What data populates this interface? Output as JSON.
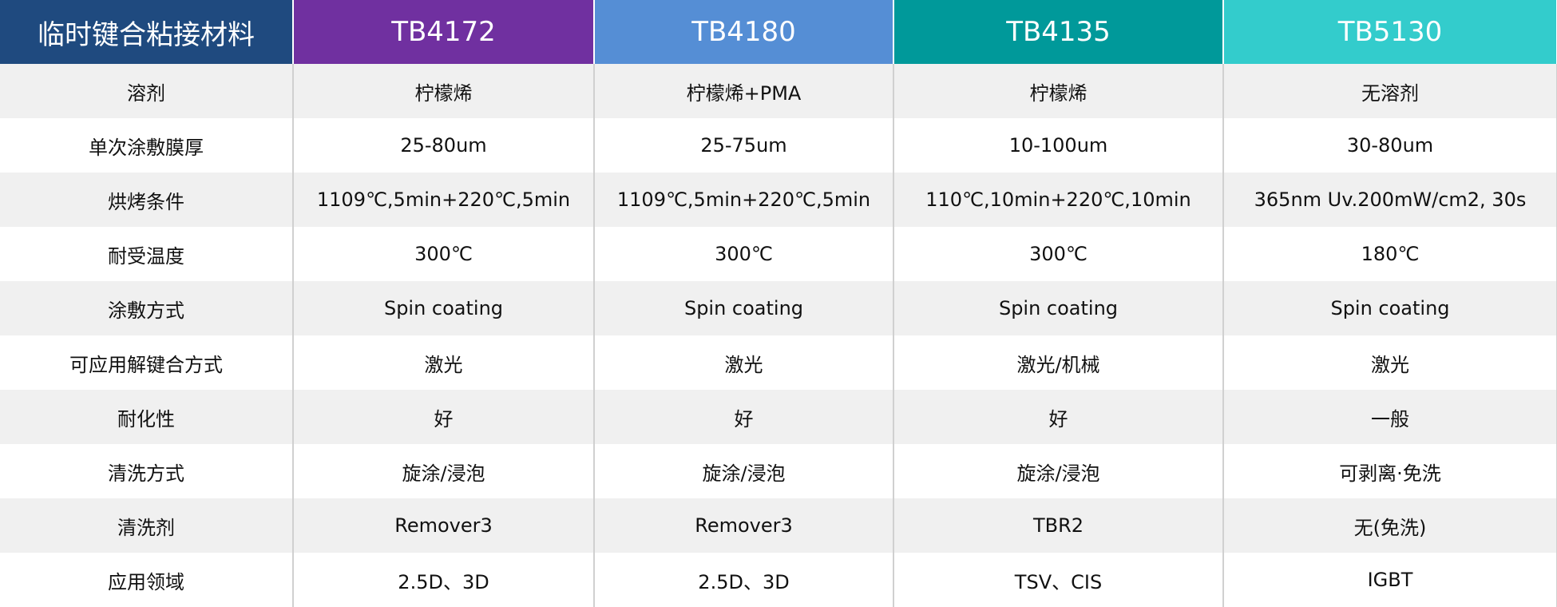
{
  "table": {
    "header": [
      "临时键合粘接材料",
      "TB4172",
      "TB4180",
      "TB4135",
      "TB5130"
    ],
    "rows": [
      [
        "溶剂",
        "柠檬烯",
        "柠檬烯+PMA",
        "柠檬烯",
        "无溶剂"
      ],
      [
        "单次涂敷膜厚",
        "25-80um",
        "25-75um",
        "10-100um",
        "30-80um"
      ],
      [
        "烘烤条件",
        "1109℃,5min+220℃,5min",
        "1109℃,5min+220℃,5min",
        "110℃,10min+220℃,10min",
        "365nm Uv.200mW/cm2, 30s"
      ],
      [
        "耐受温度",
        "300℃",
        "300℃",
        "300℃",
        "180℃"
      ],
      [
        "涂敷方式",
        "Spin coating",
        "Spin coating",
        "Spin coating",
        "Spin coating"
      ],
      [
        "可应用解键合方式",
        "激光",
        "激光",
        "激光/机械",
        "激光"
      ],
      [
        "耐化性",
        "好",
        "好",
        "好",
        "一般"
      ],
      [
        "清洗方式",
        "旋涂/浸泡",
        "旋涂/浸泡",
        "旋涂/浸泡",
        "可剥离·免洗"
      ],
      [
        "清洗剂",
        "Remover3",
        "Remover3",
        "TBR2",
        "无(免洗)"
      ],
      [
        "应用领域",
        "2.5D、3D",
        "2.5D、3D",
        "TSV、CIS",
        "IGBT"
      ]
    ]
  }
}
